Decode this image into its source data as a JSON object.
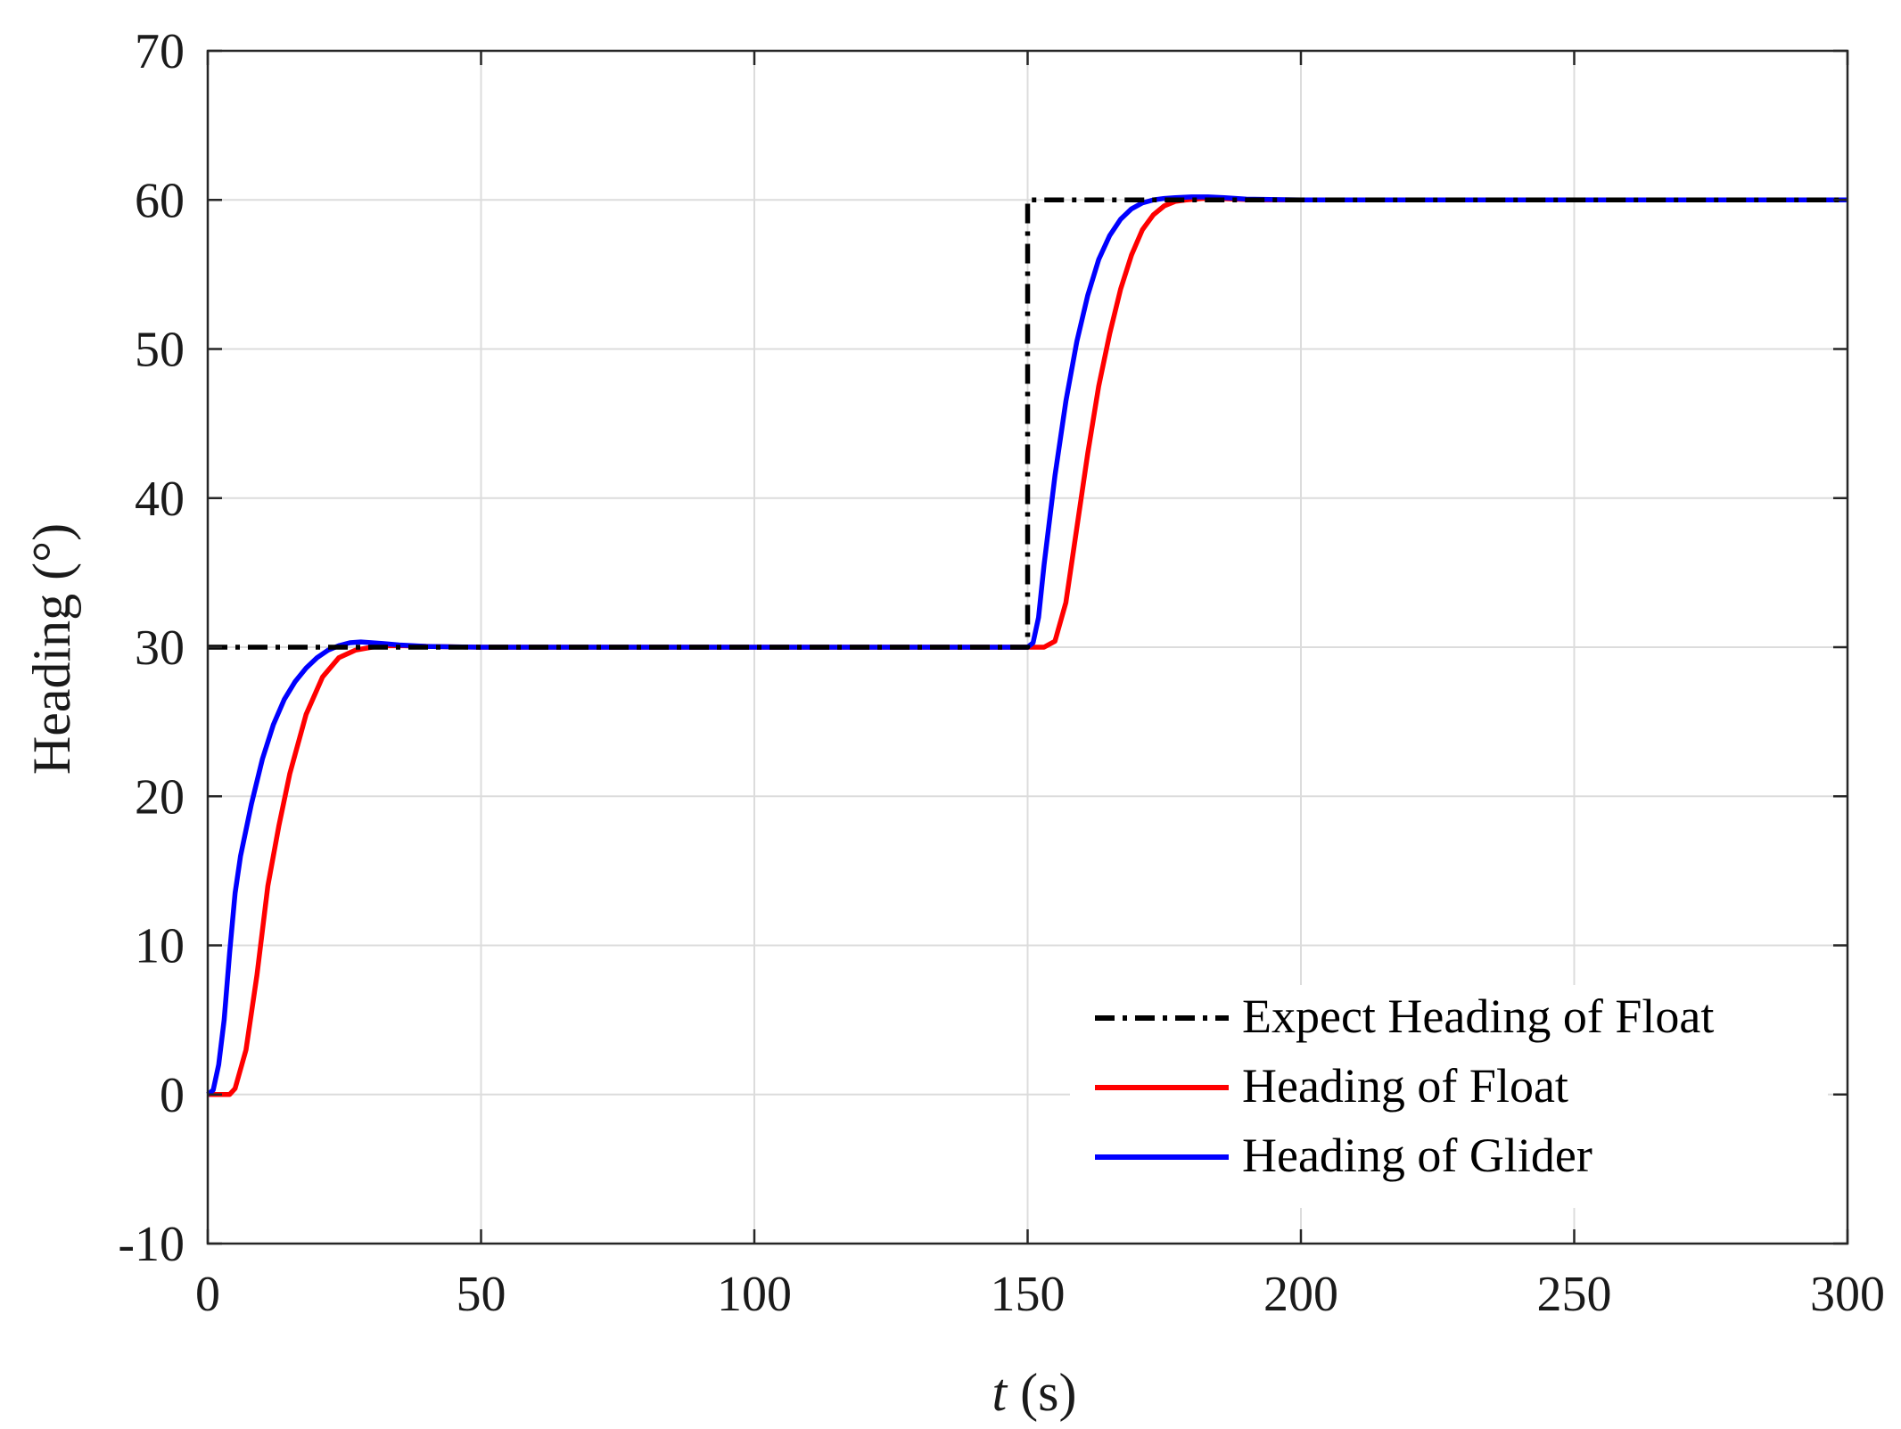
{
  "chart_data": {
    "type": "line",
    "title": "",
    "xlabel_var": "t",
    "xlabel_unit": " (s)",
    "ylabel": "Heading (°)",
    "xlim": [
      0,
      300
    ],
    "ylim": [
      -10,
      70
    ],
    "xticks": [
      "0",
      "50",
      "100",
      "150",
      "200",
      "250",
      "300"
    ],
    "yticks": [
      "-10",
      "0",
      "10",
      "20",
      "30",
      "40",
      "50",
      "60",
      "70"
    ],
    "grid": true,
    "legend_position": "bottom-right",
    "series": [
      {
        "name": "Expect Heading of Float",
        "color": "#000000",
        "style": "dash-dot",
        "x": [
          0,
          150,
          150,
          300
        ],
        "y": [
          30,
          30,
          60,
          60
        ]
      },
      {
        "name": "Heading of Float",
        "color": "#ff0000",
        "style": "solid",
        "x": [
          0,
          4,
          5,
          7,
          9,
          11,
          13,
          15,
          18,
          21,
          24,
          27,
          30,
          33,
          36,
          40,
          50,
          100,
          150,
          153,
          155,
          157,
          159,
          161,
          163,
          165,
          167,
          169,
          171,
          173,
          175,
          177,
          179,
          182,
          185,
          188,
          192,
          200,
          250,
          300
        ],
        "y": [
          0,
          0,
          0.4,
          3,
          8,
          14,
          18,
          21.5,
          25.5,
          28,
          29.3,
          29.8,
          30,
          30.1,
          30.1,
          30.05,
          30,
          30,
          30,
          30,
          30.4,
          33,
          38,
          43,
          47.5,
          51,
          54,
          56.3,
          58,
          59,
          59.6,
          59.9,
          60,
          60.1,
          60.1,
          60.05,
          60,
          60,
          60,
          60
        ]
      },
      {
        "name": "Heading of Glider",
        "color": "#0000ff",
        "style": "solid",
        "x": [
          0,
          1,
          2,
          3,
          4,
          5,
          6,
          8,
          10,
          12,
          14,
          16,
          18,
          20,
          22,
          24,
          26,
          28,
          30,
          32,
          35,
          40,
          50,
          100,
          150,
          151,
          152,
          153,
          155,
          157,
          159,
          161,
          163,
          165,
          167,
          169,
          171,
          173,
          175,
          177,
          180,
          183,
          186,
          190,
          200,
          250,
          300
        ],
        "y": [
          0,
          0.3,
          2,
          5,
          9.5,
          13.5,
          16,
          19.5,
          22.5,
          24.8,
          26.5,
          27.7,
          28.6,
          29.3,
          29.8,
          30.1,
          30.3,
          30.35,
          30.3,
          30.25,
          30.15,
          30.05,
          30,
          30,
          30,
          30.3,
          32,
          35.5,
          41.5,
          46.5,
          50.5,
          53.6,
          56,
          57.6,
          58.7,
          59.4,
          59.8,
          60,
          60.1,
          60.15,
          60.2,
          60.2,
          60.15,
          60.05,
          60,
          60,
          60
        ]
      }
    ]
  }
}
